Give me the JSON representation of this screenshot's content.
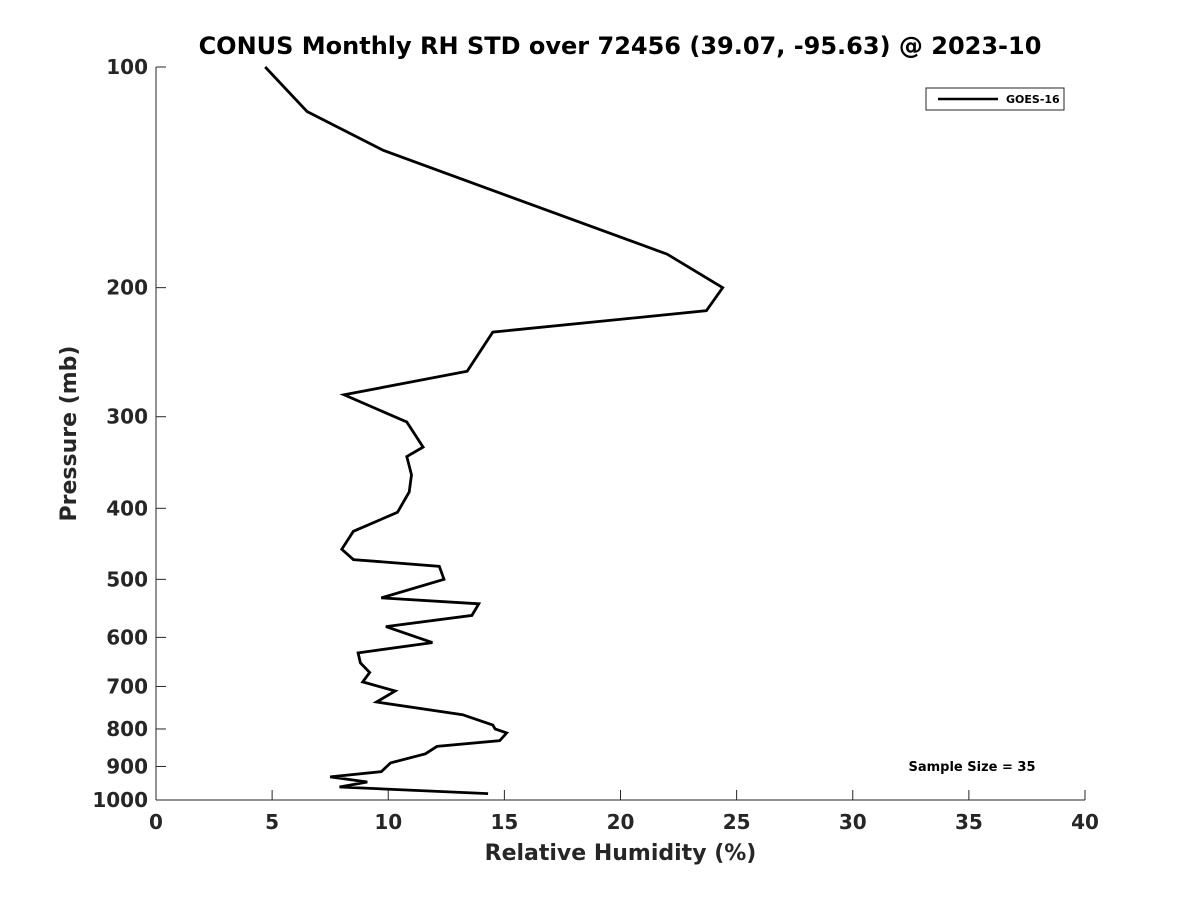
{
  "chart_data": {
    "type": "line",
    "title": "CONUS Monthly RH STD over 72456 (39.07, -95.63) @ 2023-10",
    "xlabel": "Relative Humidity (%)",
    "ylabel": "Pressure (mb)",
    "xlim": [
      0,
      40
    ],
    "ylim": [
      1000,
      100
    ],
    "yscale": "log",
    "grid": false,
    "legend_position": "top-right",
    "x_ticks": [
      0,
      5,
      10,
      15,
      20,
      25,
      30,
      35,
      40
    ],
    "y_ticks": [
      100,
      200,
      300,
      400,
      500,
      600,
      700,
      800,
      900,
      1000
    ],
    "series": [
      {
        "name": "GOES-16",
        "color": "#000000",
        "x": [
          4.7,
          6.5,
          9.8,
          22.0,
          24.4,
          23.7,
          14.5,
          13.4,
          8.1,
          10.8,
          11.5,
          10.8,
          11.0,
          10.9,
          10.4,
          8.5,
          8.0,
          8.5,
          12.2,
          12.4,
          9.7,
          13.9,
          13.6,
          9.9,
          11.9,
          8.7,
          8.8,
          9.2,
          8.9,
          10.3,
          9.5,
          13.2,
          14.5,
          14.6,
          15.1,
          14.8,
          12.1,
          11.6,
          10.1,
          9.7,
          7.5,
          9.1,
          7.9,
          14.3
        ],
        "y": [
          100,
          115,
          130,
          180,
          200,
          215,
          230,
          260,
          280,
          305,
          330,
          340,
          360,
          380,
          405,
          430,
          455,
          470,
          480,
          500,
          530,
          540,
          560,
          580,
          610,
          630,
          650,
          670,
          690,
          710,
          735,
          765,
          790,
          800,
          810,
          830,
          845,
          865,
          890,
          915,
          930,
          945,
          960,
          980
        ]
      }
    ],
    "annotation": "Sample Size = 35"
  }
}
